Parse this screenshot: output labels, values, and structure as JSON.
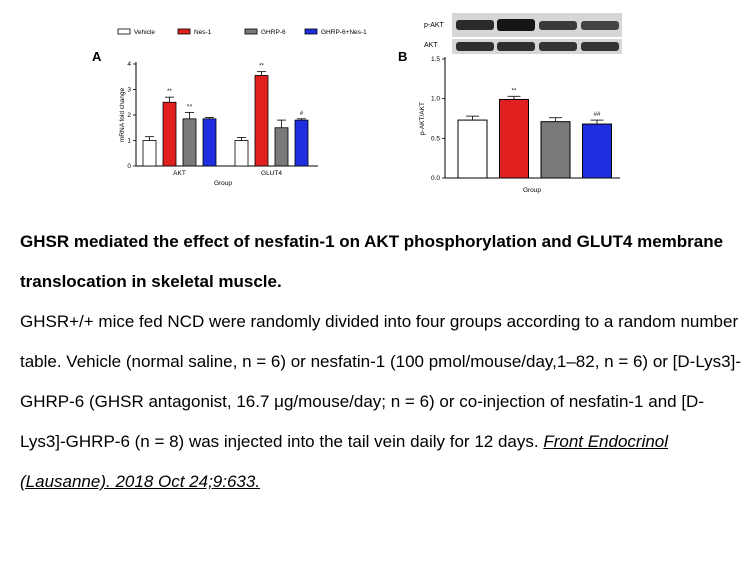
{
  "panel_labels": {
    "a": "A",
    "b": "B"
  },
  "legend": [
    {
      "label": "Vehicle",
      "color": "#ffffff"
    },
    {
      "label": "Nes-1",
      "color": "#e01f1f"
    },
    {
      "label": "GHRP-6",
      "color": "#7a7a7a"
    },
    {
      "label": "GHRP-6+Nes-1",
      "color": "#1f2fe0"
    }
  ],
  "blot_labels": [
    "p-AKT",
    "AKT"
  ],
  "chart_data": [
    {
      "type": "bar",
      "categories": [
        "AKT",
        "GLUT4"
      ],
      "xlabel": "Group",
      "ylabel": "mRNA fold change",
      "ylim": [
        0,
        4
      ],
      "yticks": [
        0,
        1,
        2,
        3,
        4
      ],
      "series": [
        {
          "name": "Vehicle",
          "color": "#ffffff",
          "values": [
            1.0,
            1.0
          ],
          "errors": [
            0.15,
            0.12
          ],
          "sig": [
            "",
            ""
          ]
        },
        {
          "name": "Nes-1",
          "color": "#e01f1f",
          "values": [
            2.5,
            3.55
          ],
          "errors": [
            0.2,
            0.15
          ],
          "sig": [
            "**",
            "**"
          ]
        },
        {
          "name": "GHRP-6",
          "color": "#7a7a7a",
          "values": [
            1.85,
            1.5
          ],
          "errors": [
            0.25,
            0.3
          ],
          "sig": [
            "^^",
            ""
          ]
        },
        {
          "name": "GHRP-6+Nes-1",
          "color": "#1f2fe0",
          "values": [
            1.85,
            1.8
          ],
          "errors": [
            0.05,
            0.05
          ],
          "sig": [
            "",
            "#"
          ]
        }
      ]
    },
    {
      "type": "bar",
      "categories": [
        "Vehicle",
        "Nes-1",
        "GHRP-6",
        "GHRP-6+Nes-1"
      ],
      "xlabel": "Group",
      "ylabel": "p-AKT/AKT",
      "ylim": [
        0,
        1.5
      ],
      "yticks": [
        "0.0",
        "0.5",
        "1.0",
        "1.5"
      ],
      "values": [
        0.73,
        0.99,
        0.71,
        0.68
      ],
      "errors": [
        0.05,
        0.04,
        0.05,
        0.05
      ],
      "colors": [
        "#ffffff",
        "#e01f1f",
        "#7a7a7a",
        "#1f2fe0"
      ],
      "sig": [
        "",
        "**",
        "",
        "##"
      ]
    }
  ],
  "caption": {
    "title": "GHSR mediated the effect of nesfatin-1 on AKT phosphorylation and GLUT4 membrane translocation in skeletal muscle.",
    "body": "GHSR+/+ mice fed NCD were randomly divided into four groups according to a random number table. Vehicle (normal saline, n = 6) or nesfatin-1 (100 pmol/mouse/day,1–82, n = 6) or [D-Lys3]-GHRP-6 (GHSR antagonist, 16.7 μg/mouse/day; n = 6) or co-injection of nesfatin-1 and [D-Lys3]-GHRP-6 (n = 8) was injected into the tail vein daily for 12 days. ",
    "citation": "Front Endocrinol (Lausanne). 2018 Oct 24;9:633."
  }
}
